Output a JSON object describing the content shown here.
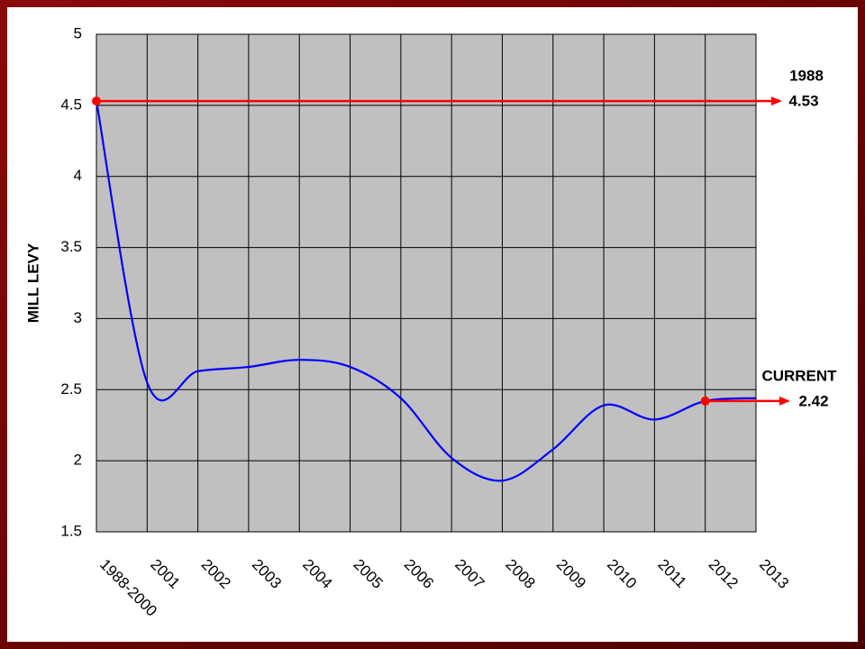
{
  "chart_data": {
    "type": "line",
    "y_label": "MILL LEVY",
    "categories": [
      "1988-2000",
      "2001",
      "2002",
      "2003",
      "2004",
      "2005",
      "2006",
      "2007",
      "2008",
      "2009",
      "2010",
      "2011",
      "2012",
      "2013"
    ],
    "series": [
      {
        "name": "Mill levy",
        "color": "#0000ff",
        "values": [
          4.53,
          2.55,
          2.63,
          2.66,
          2.71,
          2.66,
          2.44,
          2.02,
          1.86,
          2.08,
          2.39,
          2.29,
          2.42,
          2.44
        ]
      }
    ],
    "ylim": [
      1.5,
      5
    ],
    "yticks": [
      1.5,
      2,
      2.5,
      3,
      3.5,
      4,
      4.5,
      5
    ],
    "grid": true,
    "annotations": [
      {
        "label": "1988",
        "value": 4.53,
        "at": "1988-2000",
        "color": "#ff0000"
      },
      {
        "label": "CURRENT",
        "value": 2.42,
        "at": "2012",
        "color": "#ff0000"
      }
    ]
  }
}
